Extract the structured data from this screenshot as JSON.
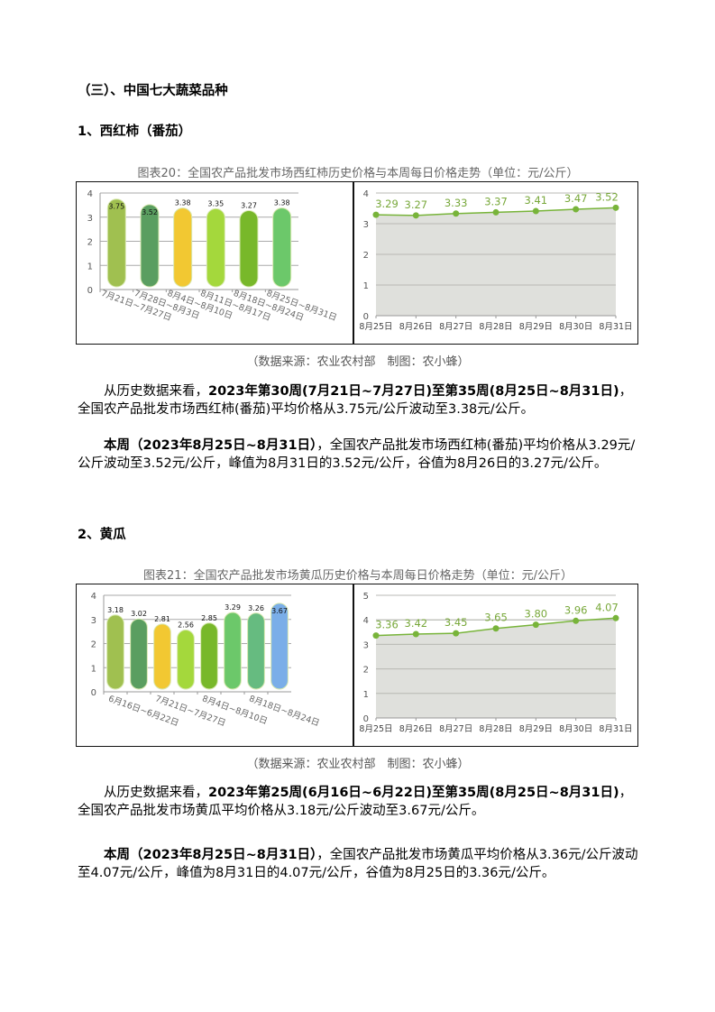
{
  "section_heading": "（三）、中国七大蔬菜品种",
  "tomato": {
    "heading": "1、西红柿（番茄）",
    "caption": "图表20：全国农产品批发市场西红柿历史价格与本周每日价格走势（单位：元/公斤）",
    "source": "（数据来源：农业农村部　制图：农小蜂）",
    "para1": [
      "从历史数据来看，",
      "2023年第30周(7月21日~7月27日)至第35周(8月25日~8月31日)",
      "，全国农产品批发市场西红柿(番茄)平均价格从3.75元/公斤波动至3.38元/公斤。"
    ],
    "para2": [
      "本周（2023年8月25日~8月31日）",
      "，全国农产品批发市场西红柿(番茄)平均价格从3.29元/公斤波动至3.52元/公斤，峰值为8月31日的3.52元/公斤，谷值为8月26日的3.27元/公斤。"
    ]
  },
  "cucumber": {
    "heading": "2、黄瓜",
    "caption": "图表21：全国农产品批发市场黄瓜历史价格与本周每日价格走势（单位：元/公斤）",
    "source": "（数据来源：农业农村部　制图：农小蜂）",
    "para1": [
      "从历史数据来看，",
      "2023年第25周(6月16日~6月22日)至第35周(8月25日~8月31日)",
      "，全国农产品批发市场黄瓜平均价格从3.18元/公斤波动至3.67元/公斤。"
    ],
    "para2": [
      "本周（2023年8月25日~8月31日）",
      "，全国农产品批发市场黄瓜平均价格从3.36元/公斤波动至4.07元/公斤，峰值为8月31日的4.07元/公斤，谷值为8月25日的3.36元/公斤。"
    ]
  },
  "chart_data": [
    {
      "id": "tomato-weekly",
      "type": "bar",
      "categories": [
        "7月21日~7月27日",
        "7月28日~8月3日",
        "8月4日~8月10日",
        "8月11日~8月17日",
        "8月18日~8月24日",
        "8月25日~8月31日"
      ],
      "values": [
        3.75,
        3.52,
        3.38,
        3.35,
        3.27,
        3.38
      ],
      "colors": [
        "#a0c050",
        "#5a9e60",
        "#f2c832",
        "#a4d83c",
        "#78b82a",
        "#6cc86a"
      ],
      "yticks": [
        "0",
        "1",
        "2",
        "3",
        "4"
      ],
      "ylim": [
        0,
        4
      ]
    },
    {
      "id": "tomato-daily",
      "type": "area",
      "categories": [
        "8月25日",
        "8月26日",
        "8月27日",
        "8月28日",
        "8月29日",
        "8月30日",
        "8月31日"
      ],
      "values": [
        3.29,
        3.27,
        3.33,
        3.37,
        3.41,
        3.47,
        3.52
      ],
      "yticks": [
        "0",
        "1",
        "2",
        "3",
        "4"
      ],
      "ylim": [
        0,
        4
      ],
      "line_color": "#78b43a",
      "fill_color": "#dcddd8"
    },
    {
      "id": "cucumber-weekly",
      "type": "bar",
      "categories": [
        "6月16日~6月22日",
        "",
        "7月21日~7月27日",
        "",
        "8月4日~8月10日",
        "",
        "8月18日~8月24日",
        ""
      ],
      "values": [
        3.18,
        3.02,
        2.81,
        2.56,
        2.85,
        3.29,
        3.26,
        3.67
      ],
      "colors": [
        "#a0c050",
        "#5a9e60",
        "#f2c832",
        "#a4d83c",
        "#78b82a",
        "#6cc86a",
        "#66bb80",
        "#7aaee8"
      ],
      "yticks": [
        "0",
        "1",
        "2",
        "3",
        "4"
      ],
      "ylim": [
        0,
        4
      ]
    },
    {
      "id": "cucumber-daily",
      "type": "area",
      "categories": [
        "8月25日",
        "8月26日",
        "8月27日",
        "8月28日",
        "8月29日",
        "8月30日",
        "8月31日"
      ],
      "values": [
        3.36,
        3.42,
        3.45,
        3.65,
        3.8,
        3.96,
        4.07
      ],
      "yticks": [
        "0",
        "1",
        "2",
        "3",
        "4",
        "5"
      ],
      "ylim": [
        0,
        5
      ],
      "line_color": "#78b43a",
      "fill_color": "#dcddd8"
    }
  ]
}
